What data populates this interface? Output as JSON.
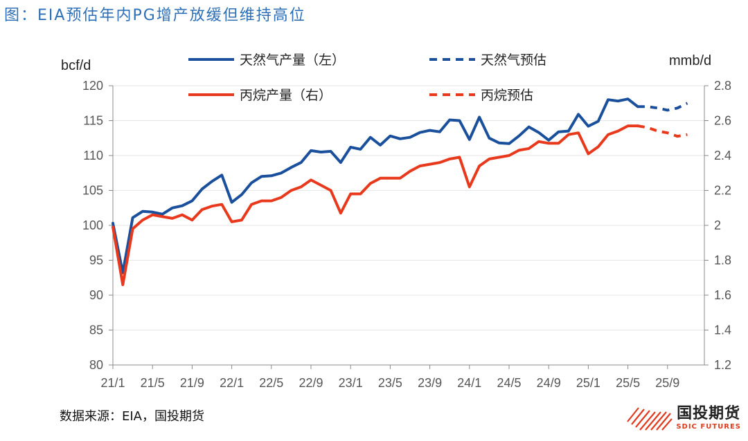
{
  "figure": {
    "title": "图：EIA预估年内PG增产放缓但维持高位",
    "source": "数据来源：EIA，国投期货",
    "brand_cn": "国投期货",
    "brand_en": "SDIC FUTURES",
    "brand_color": "#e03a1e"
  },
  "chart_data": {
    "type": "line",
    "title": "EIA预估年内PG增产放缓但维持高位",
    "left_axis_unit": "bcf/d",
    "right_axis_unit": "mmb/d",
    "ylim_left": [
      80,
      120
    ],
    "yticks_left": [
      "80",
      "85",
      "90",
      "95",
      "100",
      "105",
      "110",
      "115",
      "120"
    ],
    "ylim_right": [
      1.2,
      2.8
    ],
    "yticks_right": [
      "1.2",
      "1.4",
      "1.6",
      "1.8",
      "2",
      "2.2",
      "2.4",
      "2.6",
      "2.8"
    ],
    "x_start_month": "2021-01",
    "x_tick_labels": [
      "21/1",
      "21/5",
      "21/9",
      "22/1",
      "22/5",
      "22/9",
      "23/1",
      "23/5",
      "23/9",
      "24/1",
      "24/5",
      "24/9",
      "25/1",
      "25/5",
      "25/9"
    ],
    "legend_position": "top",
    "series": [
      {
        "name": "天然气产量（左）",
        "axis": "left",
        "style": "solid",
        "color": "#1a4f9c",
        "start_index": 0,
        "values": [
          100.3,
          93.2,
          101.1,
          102.0,
          101.9,
          101.6,
          102.5,
          102.8,
          103.5,
          105.2,
          106.3,
          107.2,
          103.3,
          104.4,
          106.1,
          107.0,
          107.1,
          107.5,
          108.3,
          109.0,
          110.7,
          110.5,
          110.6,
          109.0,
          111.2,
          110.9,
          112.6,
          111.5,
          112.8,
          112.4,
          112.6,
          113.3,
          113.6,
          113.4,
          115.1,
          115.0,
          112.3,
          115.5,
          112.5,
          111.8,
          111.7,
          112.8,
          114.1,
          113.3,
          112.2,
          113.4,
          113.5,
          115.9,
          114.2,
          114.9,
          118.0,
          117.8,
          118.1,
          117.0
        ]
      },
      {
        "name": "天然气预估",
        "axis": "left",
        "style": "dashed",
        "color": "#1a4f9c",
        "start_index": 53,
        "values": [
          117.0,
          117.0,
          116.8,
          116.5,
          116.8,
          117.5
        ]
      },
      {
        "name": "丙烷产量（右）",
        "axis": "right",
        "style": "solid",
        "color": "#e8391d",
        "start_index": 0,
        "values": [
          1.99,
          1.66,
          1.98,
          2.03,
          2.06,
          2.05,
          2.04,
          2.06,
          2.03,
          2.09,
          2.11,
          2.12,
          2.02,
          2.03,
          2.12,
          2.14,
          2.14,
          2.16,
          2.2,
          2.22,
          2.26,
          2.23,
          2.2,
          2.07,
          2.18,
          2.18,
          2.24,
          2.27,
          2.27,
          2.27,
          2.31,
          2.34,
          2.35,
          2.36,
          2.38,
          2.39,
          2.22,
          2.34,
          2.38,
          2.39,
          2.4,
          2.43,
          2.44,
          2.48,
          2.47,
          2.47,
          2.52,
          2.53,
          2.41,
          2.45,
          2.52,
          2.54,
          2.57,
          2.57
        ]
      },
      {
        "name": "丙烷预估",
        "axis": "right",
        "style": "dashed",
        "color": "#e8391d",
        "start_index": 53,
        "values": [
          2.57,
          2.56,
          2.54,
          2.53,
          2.51,
          2.52
        ]
      }
    ]
  }
}
